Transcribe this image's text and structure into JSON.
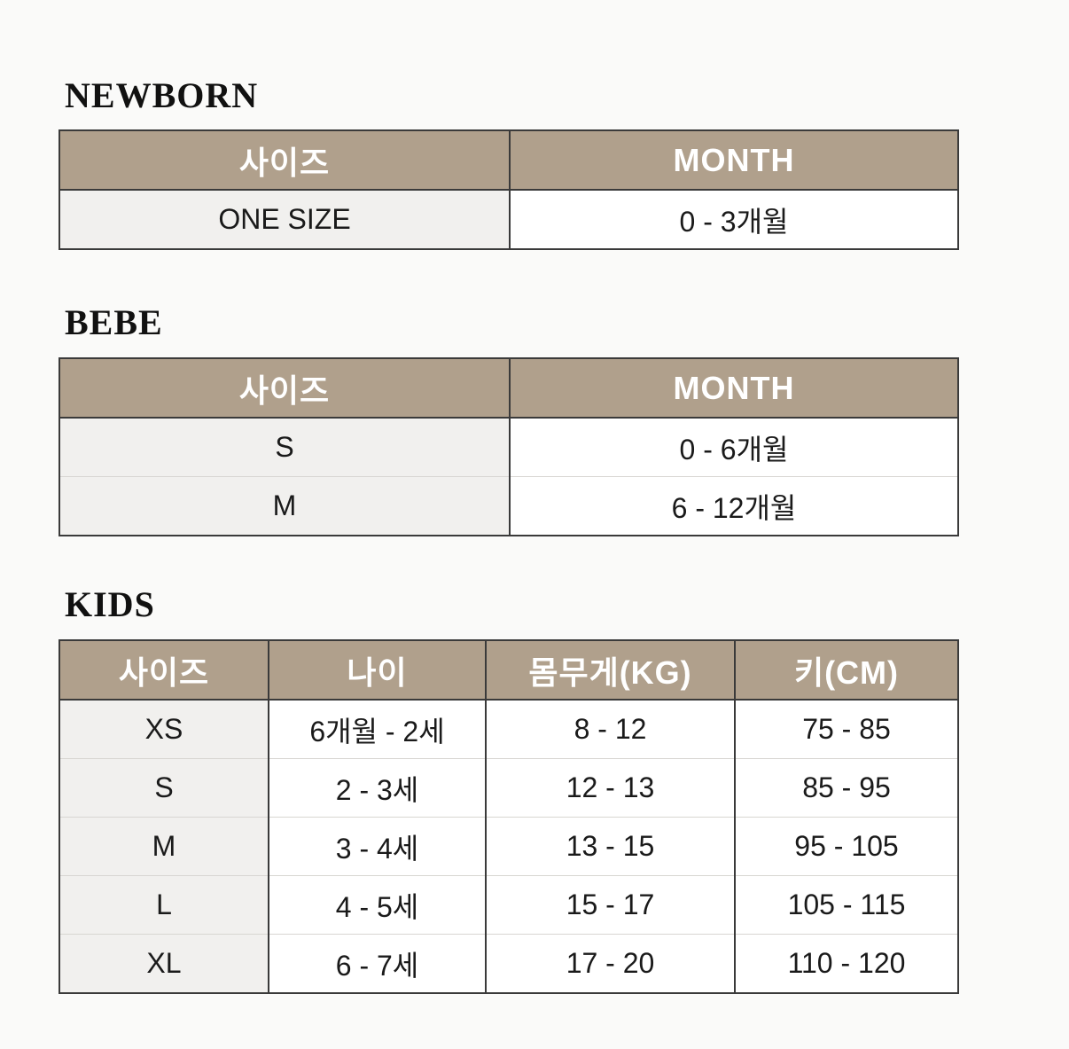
{
  "sections": {
    "newborn": {
      "title": "NEWBORN",
      "headers": [
        "사이즈",
        "MONTH"
      ],
      "rows": [
        [
          "ONE SIZE",
          "0 - 3개월"
        ]
      ]
    },
    "bebe": {
      "title": "BEBE",
      "headers": [
        "사이즈",
        "MONTH"
      ],
      "rows": [
        [
          "S",
          "0 - 6개월"
        ],
        [
          "M",
          "6 - 12개월"
        ]
      ]
    },
    "kids": {
      "title": "KIDS",
      "headers": [
        "사이즈",
        "나이",
        "몸무게(KG)",
        "키(CM)"
      ],
      "rows": [
        [
          "XS",
          "6개월 - 2세",
          "8 - 12",
          "75 - 85"
        ],
        [
          "S",
          "2 - 3세",
          "12 - 13",
          "85 - 95"
        ],
        [
          "M",
          "3 - 4세",
          "13 - 15",
          "95 - 105"
        ],
        [
          "L",
          "4 - 5세",
          "15 - 17",
          "105 - 115"
        ],
        [
          "XL",
          "6 - 7세",
          "17 - 20",
          "110 - 120"
        ]
      ]
    }
  },
  "colors": {
    "header_bg": "#b0a08c",
    "header_text": "#ffffff",
    "border": "#3a3a3a"
  }
}
